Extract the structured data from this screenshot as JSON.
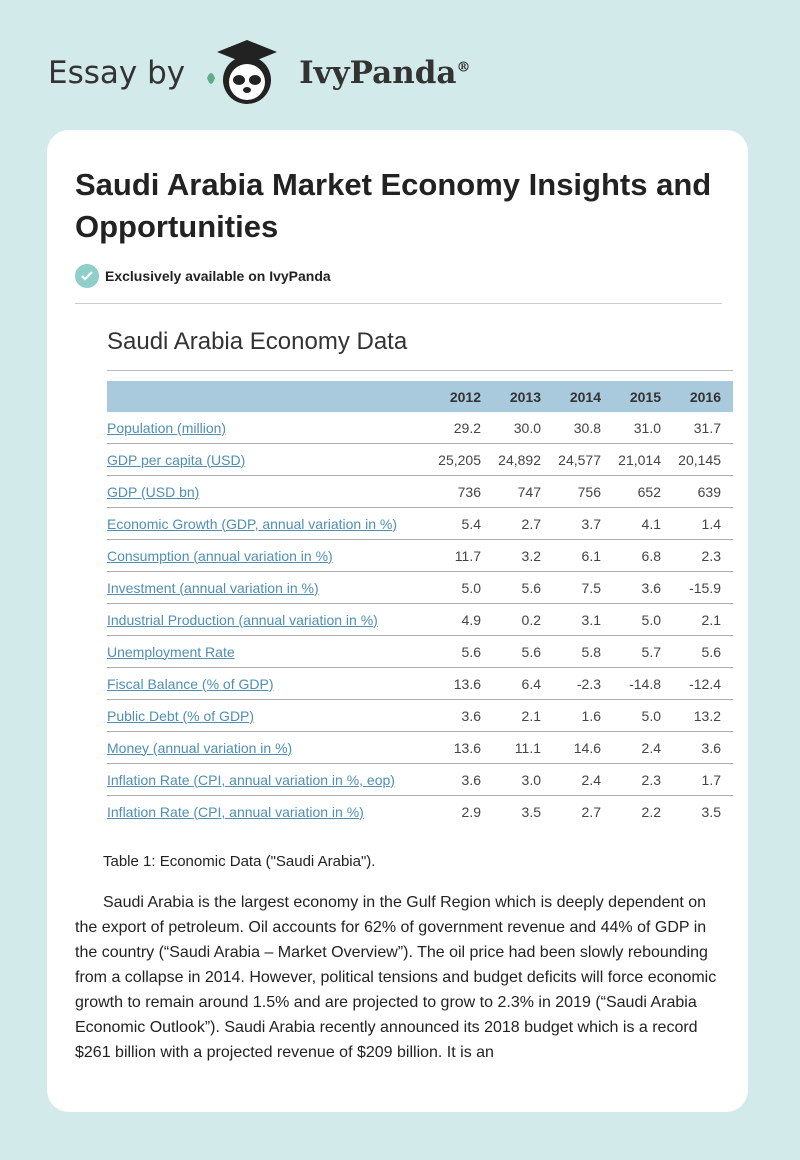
{
  "header": {
    "prefix": "Essay by",
    "brand": "IvyPanda",
    "registered": "®"
  },
  "article": {
    "title": "Saudi Arabia Market Economy Insights and Opportunities",
    "badge": "Exclusively available on IvyPanda",
    "table": {
      "title": "Saudi Arabia Economy Data",
      "columns": [
        "2012",
        "2013",
        "2014",
        "2015",
        "2016"
      ],
      "rows": [
        [
          "Population (million)",
          "29.2",
          "30.0",
          "30.8",
          "31.0",
          "31.7"
        ],
        [
          "GDP per capita (USD)",
          "25,205",
          "24,892",
          "24,577",
          "21,014",
          "20,145"
        ],
        [
          "GDP (USD bn)",
          "736",
          "747",
          "756",
          "652",
          "639"
        ],
        [
          "Economic Growth (GDP, annual variation in %)",
          "5.4",
          "2.7",
          "3.7",
          "4.1",
          "1.4"
        ],
        [
          "Consumption (annual variation in %)",
          "11.7",
          "3.2",
          "6.1",
          "6.8",
          "2.3"
        ],
        [
          "Investment (annual variation in %)",
          "5.0",
          "5.6",
          "7.5",
          "3.6",
          "-15.9"
        ],
        [
          "Industrial Production (annual variation in %)",
          "4.9",
          "0.2",
          "3.1",
          "5.0",
          "2.1"
        ],
        [
          "Unemployment Rate",
          "5.6",
          "5.6",
          "5.8",
          "5.7",
          "5.6"
        ],
        [
          "Fiscal Balance (% of GDP)",
          "13.6",
          "6.4",
          "-2.3",
          "-14.8",
          "-12.4"
        ],
        [
          "Public Debt (% of GDP)",
          "3.6",
          "2.1",
          "1.6",
          "5.0",
          "13.2"
        ],
        [
          "Money (annual variation in %)",
          "13.6",
          "11.1",
          "14.6",
          "2.4",
          "3.6"
        ],
        [
          "Inflation Rate (CPI, annual variation in %, eop)",
          "3.6",
          "3.0",
          "2.4",
          "2.3",
          "1.7"
        ],
        [
          "Inflation Rate (CPI, annual variation in %)",
          "2.9",
          "3.5",
          "2.7",
          "2.2",
          "3.5"
        ]
      ],
      "caption": "Table 1: Economic Data (\"Saudi Arabia\")."
    },
    "paragraph": "Saudi Arabia is the largest economy in the Gulf Region which is deeply dependent on the export of petroleum. Oil accounts for 62% of government revenue and 44% of GDP in the country (“Saudi Arabia – Market Overview”). The oil price had been slowly rebounding from a collapse in 2014. However, political tensions and budget deficits will force economic growth to remain around 1.5% and are projected to grow to 2.3% in 2019 (“Saudi Arabia Economic Outlook”). Saudi Arabia recently announced its 2018 budget which is a record $261 billion with a projected revenue of $209 billion. It is an"
  }
}
